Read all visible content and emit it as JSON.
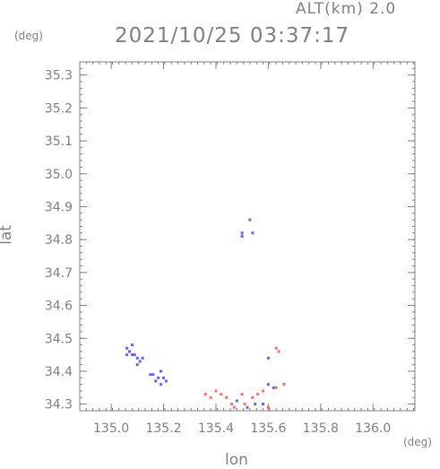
{
  "header": {
    "altitude": "ALT(km) 2.0",
    "timestamp": "2021/10/25 03:37:17"
  },
  "chart_data": {
    "type": "scatter",
    "xlabel": "lon",
    "ylabel": "lat",
    "x_unit": "(deg)",
    "y_unit": "(deg)",
    "xlim": [
      134.88,
      136.16
    ],
    "ylim": [
      34.28,
      35.34
    ],
    "x_ticks": [
      135.0,
      135.2,
      135.4,
      135.6,
      135.8,
      136.0
    ],
    "x_tick_labels": [
      "135.0",
      "135.2",
      "135.4",
      "135.6",
      "135.8",
      "136.0"
    ],
    "y_ticks": [
      34.3,
      34.4,
      34.5,
      34.6,
      34.7,
      34.8,
      34.9,
      35.0,
      35.1,
      35.2,
      35.3
    ],
    "y_tick_labels": [
      "34.3",
      "34.4",
      "34.5",
      "34.6",
      "34.7",
      "34.8",
      "34.9",
      "35.0",
      "35.1",
      "35.2",
      "35.3"
    ],
    "series": [
      {
        "color": "#3b3bff",
        "points": [
          [
            135.06,
            34.47
          ],
          [
            135.07,
            34.46
          ],
          [
            135.08,
            34.45
          ],
          [
            135.09,
            34.45
          ],
          [
            135.1,
            34.44
          ],
          [
            135.11,
            34.43
          ],
          [
            135.12,
            34.44
          ],
          [
            135.08,
            34.48
          ],
          [
            135.1,
            34.42
          ],
          [
            135.06,
            34.45
          ],
          [
            135.16,
            34.39
          ],
          [
            135.18,
            34.38
          ],
          [
            135.2,
            34.38
          ],
          [
            135.19,
            34.4
          ],
          [
            135.17,
            34.37
          ],
          [
            135.21,
            34.37
          ],
          [
            135.15,
            34.39
          ],
          [
            135.19,
            34.36
          ],
          [
            135.48,
            34.31
          ],
          [
            135.52,
            34.29
          ],
          [
            135.55,
            34.3
          ],
          [
            135.58,
            34.3
          ],
          [
            135.62,
            34.35
          ],
          [
            135.6,
            34.36
          ],
          [
            135.6,
            34.44
          ],
          [
            135.5,
            34.81
          ],
          [
            135.5,
            34.82
          ],
          [
            135.54,
            34.82
          ],
          [
            135.53,
            34.86
          ]
        ]
      },
      {
        "color": "#ff4a4a",
        "points": [
          [
            135.36,
            34.33
          ],
          [
            135.38,
            34.32
          ],
          [
            135.4,
            34.34
          ],
          [
            135.42,
            34.33
          ],
          [
            135.44,
            34.32
          ],
          [
            135.46,
            34.3
          ],
          [
            135.47,
            34.29
          ],
          [
            135.5,
            34.33
          ],
          [
            135.51,
            34.3
          ],
          [
            135.54,
            34.32
          ],
          [
            135.56,
            34.33
          ],
          [
            135.58,
            34.34
          ],
          [
            135.6,
            34.29
          ],
          [
            135.63,
            34.35
          ],
          [
            135.66,
            34.36
          ],
          [
            135.63,
            34.47
          ],
          [
            135.64,
            34.46
          ]
        ]
      }
    ]
  }
}
